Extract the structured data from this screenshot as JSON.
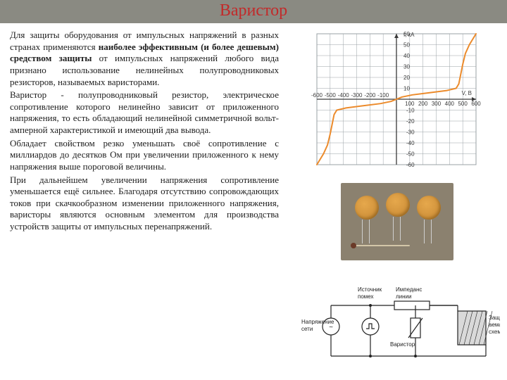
{
  "title": "Варистор",
  "paragraphs": [
    {
      "pre": "Для защиты оборудования от импульсных напряжений в разных странах применяются ",
      "bold": "наиболее эффективным (и более дешевым) средством защиты",
      "post": " от импульсных напряжений любого вида признано использование нелинейных полупроводниковых резисторов, называемых варисторами."
    },
    {
      "pre": "Варистор - полупроводниковый резистор, электрическое сопротивление которого нелинейно зависит от приложенного напряжения, то есть обладающий нелинейной симметричной вольт-амперной характеристикой и имеющий два вывода.",
      "bold": "",
      "post": ""
    },
    {
      "pre": "Обладает свойством резко уменьшать своё сопротивление с миллиардов до десятков Ом при увеличении приложенного к нему напряжения выше пороговой величины.",
      "bold": "",
      "post": ""
    },
    {
      "pre": "При дальнейшем увеличении напряжения сопротивление уменьшается ещё сильнее. Благодаря отсутствию сопровождающих токов при скачкообразном изменении приложенного напряжения, варисторы являются основным элементом для производства устройств защиты от импульсных перенапряжений.",
      "bold": "",
      "post": ""
    }
  ],
  "chart": {
    "type": "line",
    "x_label": "V, В",
    "y_label": "I, кА",
    "x_ticks": [
      -600,
      -500,
      -400,
      -300,
      -200,
      -100,
      100,
      200,
      300,
      400,
      500,
      600
    ],
    "y_ticks": [
      -60,
      -50,
      -40,
      -30,
      -20,
      -10,
      10,
      20,
      30,
      40,
      50,
      60
    ],
    "xlim": [
      -600,
      600
    ],
    "ylim": [
      -60,
      60
    ],
    "curve": [
      [
        -600,
        -60
      ],
      [
        -550,
        -50
      ],
      [
        -520,
        -42
      ],
      [
        -500,
        -32
      ],
      [
        -480,
        -20
      ],
      [
        -470,
        -14
      ],
      [
        -450,
        -10
      ],
      [
        -380,
        -8
      ],
      [
        -250,
        -6
      ],
      [
        -120,
        -4
      ],
      [
        -40,
        -2
      ],
      [
        0,
        0
      ],
      [
        40,
        2
      ],
      [
        120,
        4
      ],
      [
        250,
        6
      ],
      [
        380,
        8
      ],
      [
        450,
        10
      ],
      [
        470,
        14
      ],
      [
        480,
        20
      ],
      [
        500,
        32
      ],
      [
        520,
        42
      ],
      [
        550,
        50
      ],
      [
        600,
        60
      ]
    ],
    "colors": {
      "grid": "#9aa0a6",
      "axis": "#3a3a3a",
      "curve": "#ec8b2c",
      "tick_text": "#3a3a3a",
      "bg": "#ffffff"
    },
    "tick_fontsize": 8
  },
  "photo": {
    "background": "#8b816f",
    "disc_color_inner": "#e6a84c",
    "disc_color_outer": "#c48632",
    "count": 3
  },
  "circuit": {
    "labels": {
      "voltage_source": "Напряжение сети",
      "noise_source": "Источник помех",
      "varistor": "Варистор",
      "line_impedance": "Импеданс линии",
      "protected": "Защищаемая схема"
    },
    "stroke": "#222222",
    "fill": "#ffffff",
    "protected_fill": "#d9d9d9"
  }
}
